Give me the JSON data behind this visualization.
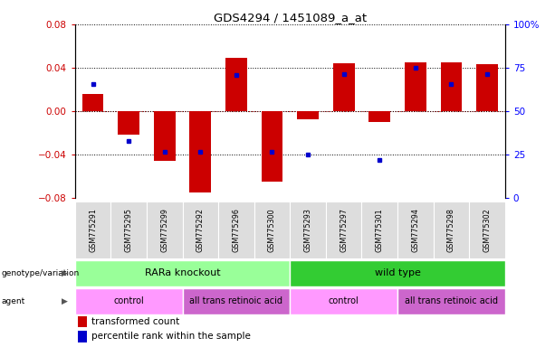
{
  "title": "GDS4294 / 1451089_a_at",
  "samples": [
    "GSM775291",
    "GSM775295",
    "GSM775299",
    "GSM775292",
    "GSM775296",
    "GSM775300",
    "GSM775293",
    "GSM775297",
    "GSM775301",
    "GSM775294",
    "GSM775298",
    "GSM775302"
  ],
  "red_bars": [
    0.016,
    -0.022,
    -0.046,
    -0.075,
    0.049,
    -0.065,
    -0.008,
    0.044,
    -0.01,
    0.045,
    0.045,
    0.043
  ],
  "blue_markers": [
    0.025,
    -0.028,
    -0.038,
    -0.038,
    0.033,
    -0.038,
    -0.04,
    0.034,
    -0.045,
    0.04,
    0.025,
    0.034
  ],
  "ylim_left": [
    -0.08,
    0.08
  ],
  "ylim_right": [
    0,
    100
  ],
  "yticks_left": [
    -0.08,
    -0.04,
    0,
    0.04,
    0.08
  ],
  "yticks_right": [
    0,
    25,
    50,
    75,
    100
  ],
  "red_color": "#CC0000",
  "blue_color": "#0000CC",
  "bar_width": 0.6,
  "genotype_groups": [
    {
      "label": "RARa knockout",
      "start": 0,
      "end": 6,
      "color": "#99FF99"
    },
    {
      "label": "wild type",
      "start": 6,
      "end": 12,
      "color": "#33CC33"
    }
  ],
  "agent_groups": [
    {
      "label": "control",
      "start": 0,
      "end": 3,
      "color": "#FF99FF"
    },
    {
      "label": "all trans retinoic acid",
      "start": 3,
      "end": 6,
      "color": "#CC66CC"
    },
    {
      "label": "control",
      "start": 6,
      "end": 9,
      "color": "#FF99FF"
    },
    {
      "label": "all trans retinoic acid",
      "start": 9,
      "end": 12,
      "color": "#CC66CC"
    }
  ],
  "genotype_label": "genotype/variation",
  "agent_label": "agent",
  "legend_red": "transformed count",
  "legend_blue": "percentile rank within the sample",
  "bg_color": "white"
}
